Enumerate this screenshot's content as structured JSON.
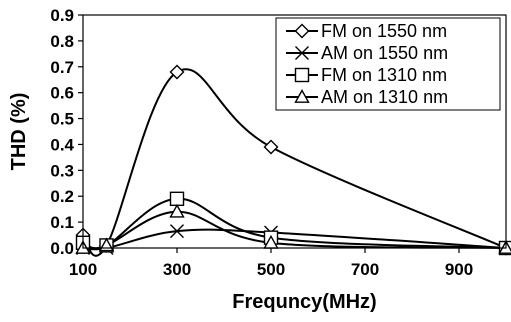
{
  "chart_data": {
    "type": "line",
    "title": "",
    "xlabel": "Frequncy(MHz)",
    "ylabel": "THD (%)",
    "xlim": [
      100,
      1000
    ],
    "ylim": [
      0,
      0.9
    ],
    "x_ticks": [
      "100",
      "300",
      "500",
      "700",
      "900"
    ],
    "y_ticks": [
      "0.0",
      "0.1",
      "0.2",
      "0.3",
      "0.4",
      "0.5",
      "0.6",
      "0.7",
      "0.8",
      "0.9"
    ],
    "grid": false,
    "legend_position": "top-right",
    "x": [
      100,
      150,
      300,
      500,
      1000
    ],
    "series": [
      {
        "name": "FM on 1550 nm",
        "marker": "diamond",
        "values": [
          0.05,
          0.01,
          0.68,
          0.39,
          0.0
        ]
      },
      {
        "name": "AM on 1550 nm",
        "marker": "x",
        "values": [
          0.0,
          0.0,
          0.065,
          0.06,
          0.0
        ]
      },
      {
        "name": "FM on 1310 nm",
        "marker": "square",
        "values": [
          0.02,
          0.01,
          0.19,
          0.04,
          0.0
        ]
      },
      {
        "name": "AM on 1310 nm",
        "marker": "triangle",
        "values": [
          0.0,
          0.01,
          0.14,
          0.02,
          0.0
        ]
      }
    ]
  }
}
